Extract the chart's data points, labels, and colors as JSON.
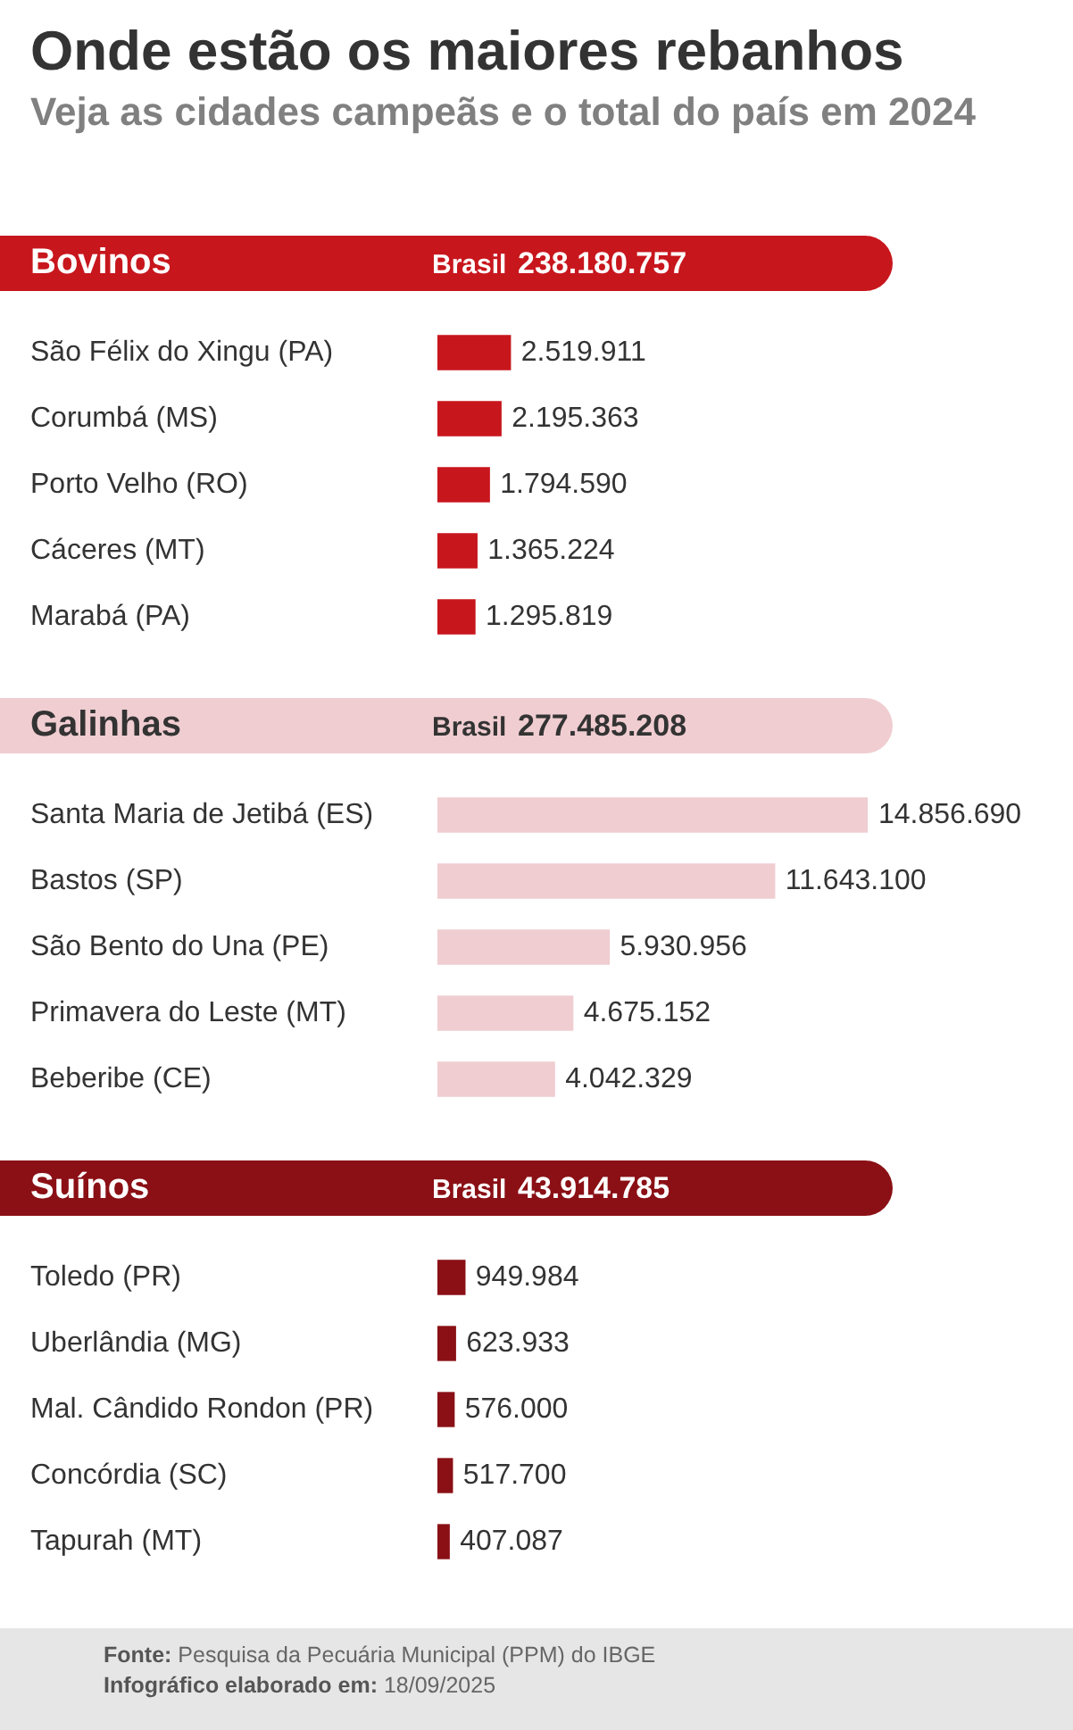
{
  "chart_data": [
    {
      "type": "other",
      "title": "Onde estão os maiores rebanhos",
      "subtitle": "Veja as cidades campeãs e o total do país em 2024"
    },
    {
      "type": "bar",
      "orientation": "horizontal",
      "title": "Bovinos",
      "annotations": [
        "Brasil",
        "238.180.757"
      ],
      "categories": [
        "São Félix do Xingu (PA)",
        "Corumbá (MS)",
        "Porto Velho (RO)",
        "Cáceres (MT)",
        "Marabá (PA)"
      ],
      "values": [
        2519911,
        2195363,
        1794590,
        1365224,
        1295819
      ],
      "value_labels": [
        "2.519.911",
        "2.195.363",
        "1.794.590",
        "1.365.224",
        "1.295.819"
      ],
      "color": "#c8161d",
      "legend": false,
      "grid": false,
      "tick_labels": "y"
    },
    {
      "type": "bar",
      "orientation": "horizontal",
      "title": "Galinhas",
      "annotations": [
        "Brasil",
        "277.485.208"
      ],
      "categories": [
        "Santa Maria de Jetibá (ES)",
        "Bastos (SP)",
        "São Bento do Una (PE)",
        "Primavera do Leste (MT)",
        "Beberibe (CE)"
      ],
      "values": [
        14856690,
        11643100,
        5930956,
        4675152,
        4042329
      ],
      "value_labels": [
        "14.856.690",
        "11.643.100",
        "5.930.956",
        "4.675.152",
        "4.042.329"
      ],
      "color": "#f0cdd1",
      "legend": false,
      "grid": false,
      "tick_labels": "y"
    },
    {
      "type": "bar",
      "orientation": "horizontal",
      "title": "Suínos",
      "annotations": [
        "Brasil",
        "43.914.785"
      ],
      "categories": [
        "Toledo (PR)",
        "Uberlândia (MG)",
        "Mal. Cândido Rondon (PR)",
        "Concórdia (SC)",
        "Tapurah (MT)"
      ],
      "values": [
        949984,
        623933,
        576000,
        517700,
        407087
      ],
      "value_labels": [
        "949.984",
        "623.933",
        "576.000",
        "517.700",
        "407.087"
      ],
      "color": "#8a1015",
      "legend": false,
      "grid": false,
      "tick_labels": "y"
    },
    {
      "type": "other",
      "annotations": [
        "Fonte: Pesquisa da Pecuária Municipal (PPM) do IBGE",
        "Infográfico elaborado em: 18/09/2025"
      ]
    }
  ]
}
